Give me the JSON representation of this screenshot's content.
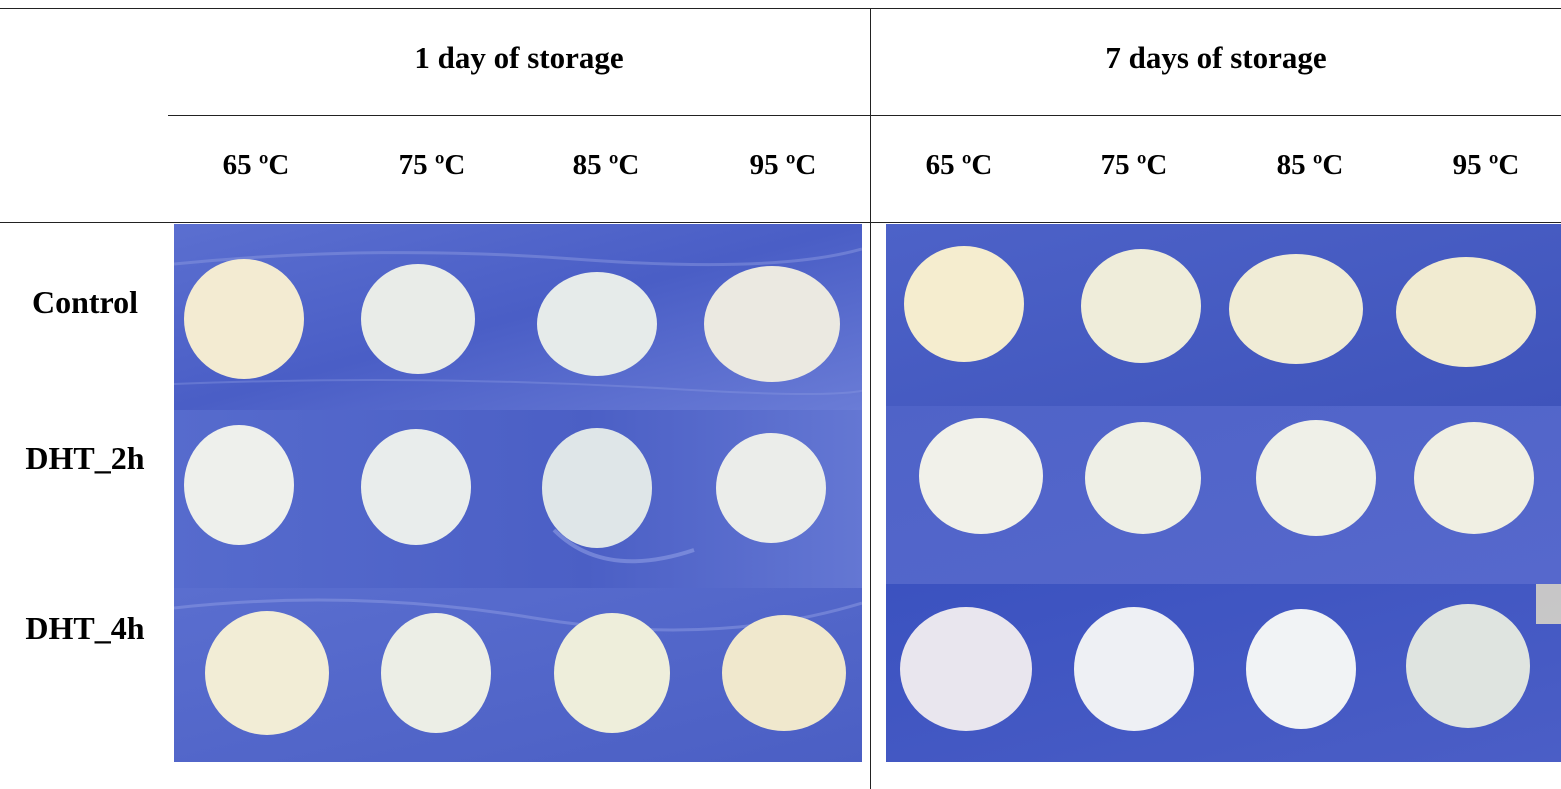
{
  "header": {
    "groups": [
      {
        "label": "1 day of storage"
      },
      {
        "label": "7 days of storage"
      }
    ],
    "temps_day1": [
      "65 ºC",
      "75 ºC",
      "85 ºC",
      "95 ºC"
    ],
    "temps_day7": [
      "65 ºC",
      "75 ºC",
      "85 ºC",
      "95 ºC"
    ]
  },
  "rows": [
    {
      "label": "Control"
    },
    {
      "label": "DHT_2h"
    },
    {
      "label": "DHT_4h"
    }
  ],
  "colors": {
    "background_blue": "#4a5fc4",
    "gel_cream": "#f2ecd6",
    "gel_white": "#ecefef",
    "rule": "#222222"
  }
}
